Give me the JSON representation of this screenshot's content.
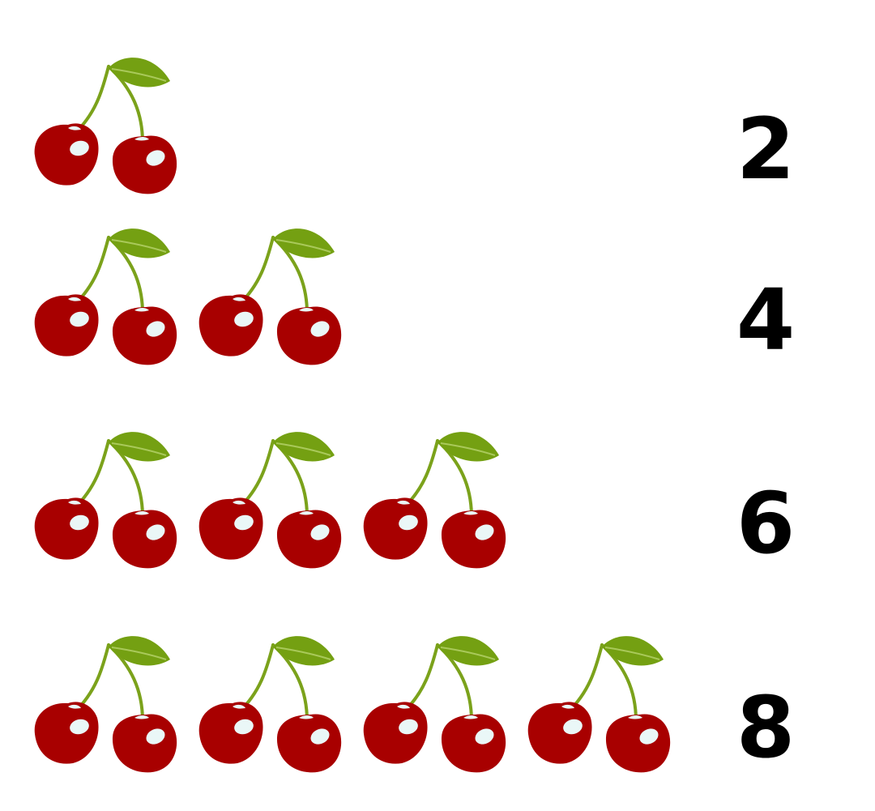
{
  "rows": [
    {
      "pairs": 1,
      "label": "2"
    },
    {
      "pairs": 2,
      "label": "4"
    },
    {
      "pairs": 3,
      "label": "6"
    },
    {
      "pairs": 4,
      "label": "8"
    }
  ],
  "colors": {
    "cherry": "#a80000",
    "highlight": "#eaf7f7",
    "stem": "#7ba21b",
    "leaf": "#74a012",
    "number": "#000000"
  },
  "icon": "cherry-pair-icon"
}
